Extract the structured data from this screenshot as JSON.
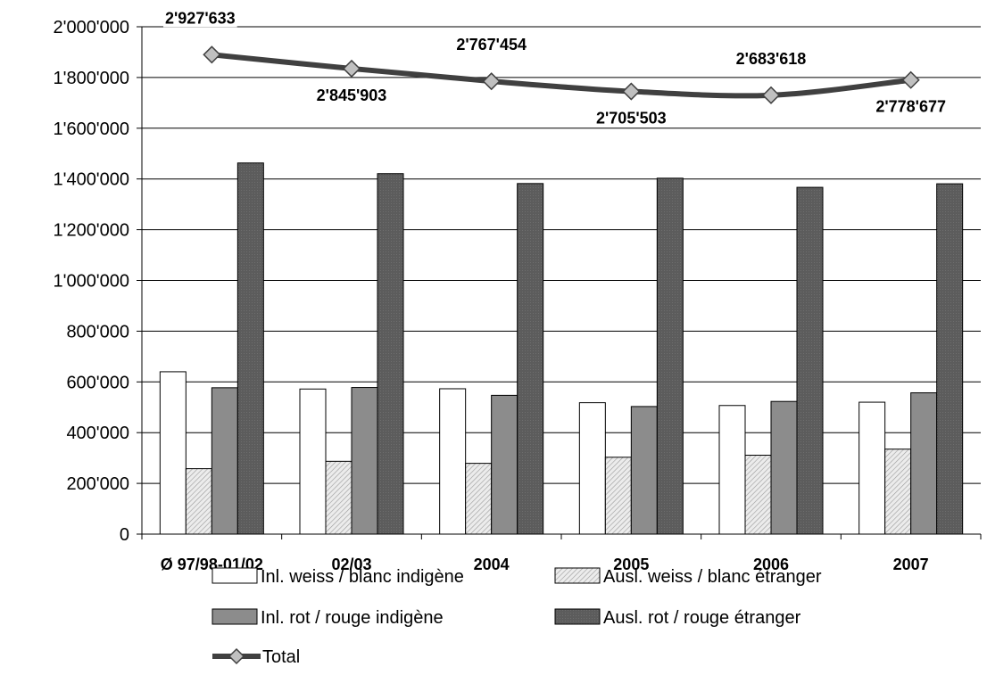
{
  "chart_data": {
    "type": "bar",
    "categories": [
      "Ø 97/98-01/02",
      "02/03",
      "2004",
      "2005",
      "2006",
      "2007"
    ],
    "ylim": [
      0,
      2000000
    ],
    "yticks": [
      0,
      200000,
      400000,
      600000,
      800000,
      1000000,
      1200000,
      1400000,
      1600000,
      1800000,
      2000000
    ],
    "ytick_labels": [
      "0",
      "200'000",
      "400'000",
      "600'000",
      "800'000",
      "1'000'000",
      "1'200'000",
      "1'400'000",
      "1'600'000",
      "1'800'000",
      "2'000'000"
    ],
    "grid": true,
    "legend_position": "bottom",
    "series": [
      {
        "name": "Inl. weiss / blanc indigène",
        "type": "bar",
        "fill": "#ffffff",
        "values": [
          640000,
          572000,
          573000,
          518000,
          507000,
          520000
        ]
      },
      {
        "name": "Ausl. weiss / blanc étranger",
        "type": "bar",
        "fill": "#d4d4d4",
        "pattern": "hatch",
        "values": [
          258000,
          287000,
          279000,
          303000,
          311000,
          335000
        ]
      },
      {
        "name": "Inl. rot / rouge indigène",
        "type": "bar",
        "fill": "#8c8c8c",
        "values": [
          577000,
          578000,
          547000,
          503000,
          523000,
          557000
        ]
      },
      {
        "name": "Ausl. rot / rouge étranger",
        "type": "bar",
        "fill": "#616161",
        "values": [
          1463000,
          1421000,
          1382000,
          1403000,
          1367000,
          1381000
        ]
      },
      {
        "name": "Total",
        "type": "line",
        "color": "#404040",
        "marker_color": "#c0c0c0",
        "values": [
          1890000,
          1835000,
          1785000,
          1745000,
          1730000,
          1790000
        ]
      }
    ],
    "total_labels": [
      "2'927'633",
      "2'845'903",
      "2'767'454",
      "2'705'503",
      "2'683'618",
      "2'778'677"
    ]
  }
}
